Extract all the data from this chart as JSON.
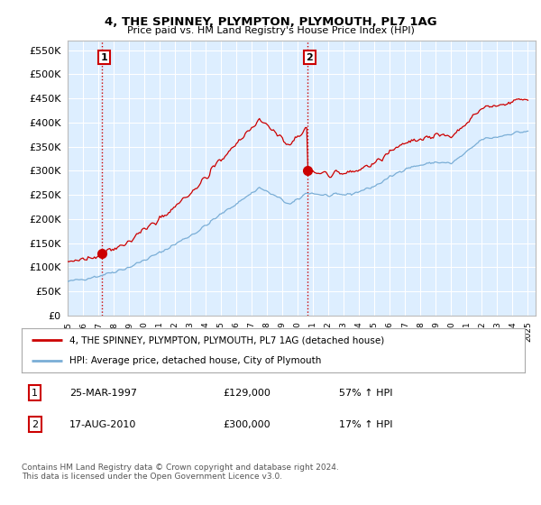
{
  "title": "4, THE SPINNEY, PLYMPTON, PLYMOUTH, PL7 1AG",
  "subtitle": "Price paid vs. HM Land Registry's House Price Index (HPI)",
  "ytick_values": [
    0,
    50000,
    100000,
    150000,
    200000,
    250000,
    300000,
    350000,
    400000,
    450000,
    500000,
    550000
  ],
  "ylim": [
    0,
    570000
  ],
  "xlim_start": 1995.0,
  "xlim_end": 2025.5,
  "xtick_years": [
    1995,
    1996,
    1997,
    1998,
    1999,
    2000,
    2001,
    2002,
    2003,
    2004,
    2005,
    2006,
    2007,
    2008,
    2009,
    2010,
    2011,
    2012,
    2013,
    2014,
    2015,
    2016,
    2017,
    2018,
    2019,
    2020,
    2021,
    2022,
    2023,
    2024,
    2025
  ],
  "hpi_color": "#7aaed6",
  "price_color": "#cc0000",
  "vline_color": "#cc0000",
  "marker_color": "#cc0000",
  "sale1_year": 1997.22,
  "sale1_price": 129000,
  "sale2_year": 2010.62,
  "sale2_price": 300000,
  "legend_line1": "4, THE SPINNEY, PLYMPTON, PLYMOUTH, PL7 1AG (detached house)",
  "legend_line2": "HPI: Average price, detached house, City of Plymouth",
  "table_row1": [
    "1",
    "25-MAR-1997",
    "£129,000",
    "57% ↑ HPI"
  ],
  "table_row2": [
    "2",
    "17-AUG-2010",
    "£300,000",
    "17% ↑ HPI"
  ],
  "footer": "Contains HM Land Registry data © Crown copyright and database right 2024.\nThis data is licensed under the Open Government Licence v3.0.",
  "background_color": "#ffffff",
  "plot_bg_color": "#ddeeff",
  "grid_color": "#ffffff"
}
